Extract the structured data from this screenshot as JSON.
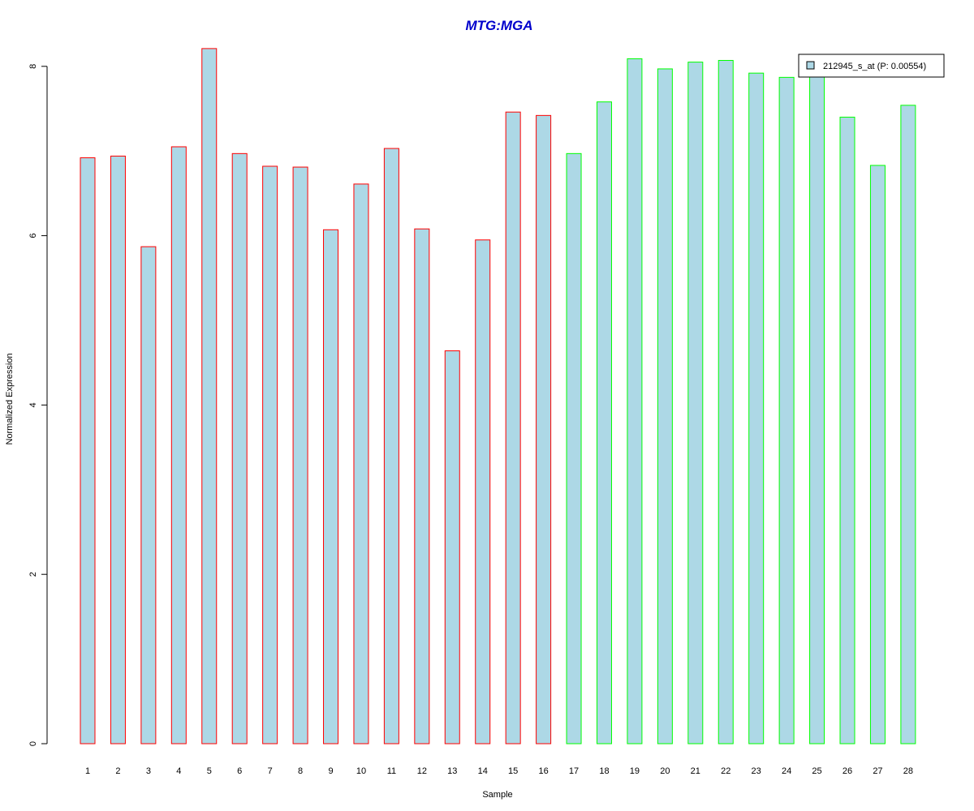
{
  "chart_data": {
    "type": "bar",
    "title": "MTG:MGA",
    "xlabel": "Sample",
    "ylabel": "Normalized Expression",
    "ylim": [
      0,
      8.2
    ],
    "yticks": [
      "0",
      "2",
      "4",
      "6",
      "8"
    ],
    "grid": false,
    "legend_position": "top-right",
    "categories": [
      "1",
      "2",
      "3",
      "4",
      "5",
      "6",
      "7",
      "8",
      "9",
      "10",
      "11",
      "12",
      "13",
      "14",
      "15",
      "16",
      "17",
      "18",
      "19",
      "20",
      "21",
      "22",
      "23",
      "24",
      "25",
      "26",
      "27",
      "28"
    ],
    "series": [
      {
        "name": "212945_s_at (P: 0.00554)",
        "values": [
          6.92,
          6.94,
          5.87,
          7.05,
          8.21,
          6.97,
          6.82,
          6.81,
          6.07,
          6.61,
          7.03,
          6.08,
          4.64,
          5.95,
          7.46,
          7.42,
          6.97,
          7.58,
          8.09,
          7.97,
          8.05,
          8.07,
          7.92,
          7.87,
          7.93,
          7.4,
          6.83,
          7.54
        ],
        "fill": "#add8e6",
        "group_border_colors": [
          "#ff0000",
          "#ff0000",
          "#ff0000",
          "#ff0000",
          "#ff0000",
          "#ff0000",
          "#ff0000",
          "#ff0000",
          "#ff0000",
          "#ff0000",
          "#ff0000",
          "#ff0000",
          "#ff0000",
          "#ff0000",
          "#ff0000",
          "#ff0000",
          "#00ff00",
          "#00ff00",
          "#00ff00",
          "#00ff00",
          "#00ff00",
          "#00ff00",
          "#00ff00",
          "#00ff00",
          "#00ff00",
          "#00ff00",
          "#00ff00",
          "#00ff00"
        ]
      }
    ],
    "title_color": "#0000cc"
  }
}
